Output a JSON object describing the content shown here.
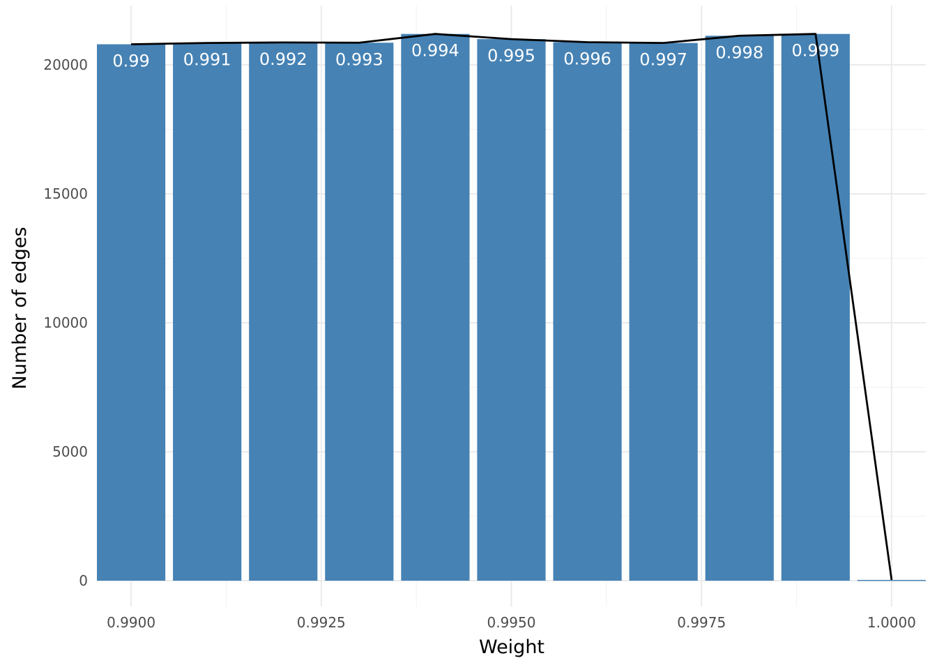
{
  "chart_data": {
    "type": "bar",
    "title": "",
    "xlabel": "Weight",
    "ylabel": "Number of edges",
    "x": [
      0.99,
      0.991,
      0.992,
      0.993,
      0.994,
      0.995,
      0.996,
      0.997,
      0.998,
      0.999,
      1.0
    ],
    "values": [
      20800,
      20850,
      20870,
      20860,
      21200,
      21000,
      20880,
      20850,
      21130,
      21200,
      30
    ],
    "bar_labels": [
      "0.99",
      "0.991",
      "0.992",
      "0.993",
      "0.994",
      "0.995",
      "0.996",
      "0.997",
      "0.998",
      "0.999",
      ""
    ],
    "line_overlay": true,
    "xlim": [
      0.98955,
      1.00045
    ],
    "ylim": [
      -1000,
      22300
    ],
    "x_ticks": [
      0.99,
      0.9925,
      0.995,
      0.9975,
      1.0
    ],
    "x_tick_labels": [
      "0.9900",
      "0.9925",
      "0.9950",
      "0.9975",
      "1.0000"
    ],
    "y_ticks": [
      0,
      5000,
      10000,
      15000,
      20000
    ],
    "y_tick_labels": [
      "0",
      "5000",
      "10000",
      "15000",
      "20000"
    ],
    "grid": true,
    "legend": "none",
    "colors": {
      "bar": "#4682b4",
      "line": "#000000",
      "bar_label": "#ffffff"
    }
  }
}
